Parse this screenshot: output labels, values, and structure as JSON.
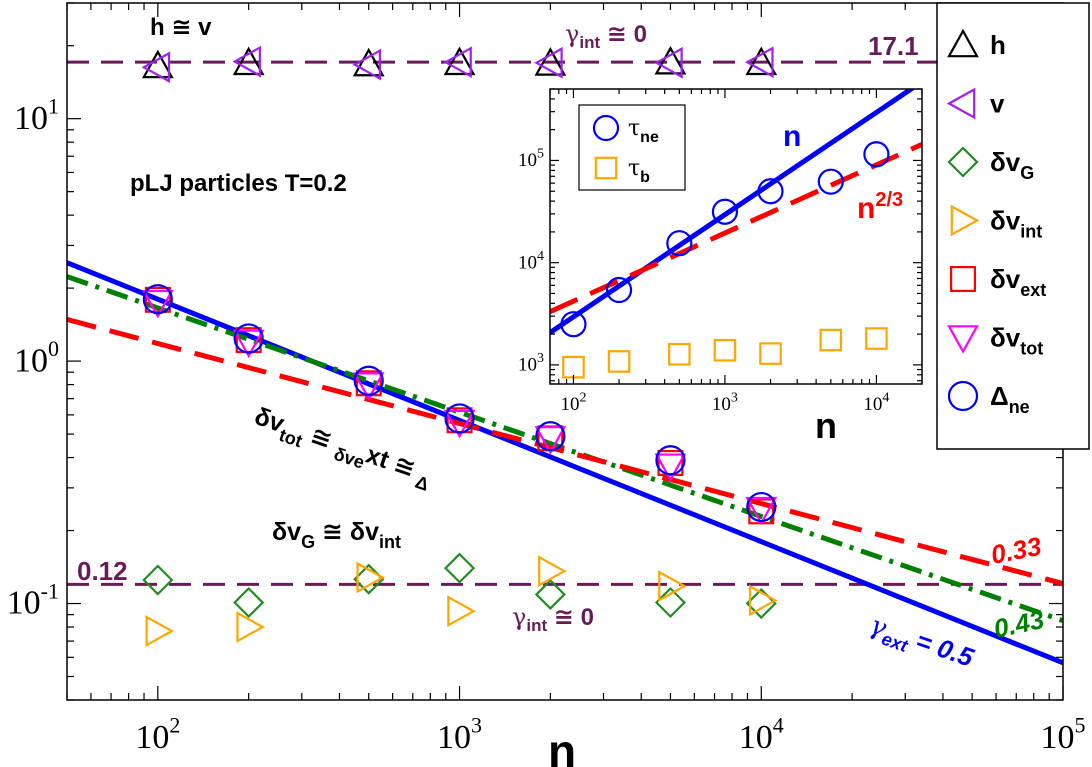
{
  "chart_data": [
    {
      "type": "scatter",
      "subtitle": "pLJ particles T=0.2",
      "xlabel": "n",
      "ylabel": "",
      "xscale": "log",
      "yscale": "log",
      "xlim": [
        50,
        100000
      ],
      "ylim": [
        0.04,
        30
      ],
      "x_ticks": [
        {
          "value": 100,
          "base": "10",
          "exp": "2"
        },
        {
          "value": 1000,
          "base": "10",
          "exp": "3"
        },
        {
          "value": 10000,
          "base": "10",
          "exp": "4"
        },
        {
          "value": 100000,
          "base": "10",
          "exp": "5"
        }
      ],
      "y_ticks": [
        {
          "value": 0.1,
          "base": "10",
          "exp": "-1"
        },
        {
          "value": 1,
          "base": "10",
          "exp": "0"
        },
        {
          "value": 10,
          "base": "10",
          "exp": "1"
        }
      ],
      "series": [
        {
          "name": "h",
          "marker": "triangle-up",
          "color": "#000000",
          "x": [
            100,
            200,
            500,
            1000,
            2000,
            5000,
            10000
          ],
          "y": [
            16.5,
            17.0,
            16.8,
            17.0,
            16.9,
            17.1,
            17.0
          ]
        },
        {
          "name": "v",
          "marker": "triangle-left",
          "color": "#a020f0",
          "x": [
            100,
            200,
            500,
            1000,
            2000,
            5000,
            10000
          ],
          "y": [
            16.3,
            17.2,
            16.7,
            17.1,
            17.0,
            17.0,
            17.1
          ]
        },
        {
          "name": "δv_G",
          "marker": "diamond",
          "color": "#228b22",
          "x": [
            100,
            200,
            500,
            1000,
            2000,
            5000,
            10000
          ],
          "y": [
            0.125,
            0.101,
            0.126,
            0.14,
            0.109,
            0.101,
            0.1
          ]
        },
        {
          "name": "δv_int",
          "marker": "triangle-right",
          "color": "#ffa500",
          "x": [
            100,
            200,
            500,
            1000,
            2000,
            5000,
            10000
          ],
          "y": [
            0.077,
            0.08,
            0.128,
            0.093,
            0.136,
            0.118,
            0.103
          ]
        },
        {
          "name": "δv_ext",
          "marker": "square",
          "color": "#ff0000",
          "x": [
            100,
            200,
            500,
            1000,
            2000,
            5000,
            10000
          ],
          "y": [
            1.79,
            1.22,
            0.81,
            0.57,
            0.48,
            0.38,
            0.24
          ]
        },
        {
          "name": "δv_tot",
          "marker": "triangle-down",
          "color": "#ff00ff",
          "x": [
            100,
            200,
            500,
            1000,
            2000,
            5000,
            10000
          ],
          "y": [
            1.75,
            1.2,
            0.8,
            0.56,
            0.48,
            0.37,
            0.245
          ]
        },
        {
          "name": "Δ_ne",
          "marker": "circle",
          "color": "#0000ff",
          "x": [
            100,
            200,
            500,
            1000,
            2000,
            5000,
            10000
          ],
          "y": [
            1.8,
            1.24,
            0.83,
            0.58,
            0.49,
            0.39,
            0.25
          ]
        }
      ],
      "fit_lines": [
        {
          "name": "h ≅ v plateau",
          "style": "dashed",
          "color": "#6a1b57",
          "constant": 17.1,
          "label": "17.1"
        },
        {
          "name": "δv_G ≅ δv_int plateau",
          "style": "dashed",
          "color": "#6a1b57",
          "constant": 0.12,
          "label": "0.12"
        },
        {
          "name": "slope 0.5",
          "style": "solid",
          "color": "#0000ff",
          "amplitude": 18.0,
          "exponent": -0.5,
          "x_range": [
            50,
            100000
          ],
          "label": "γ_ext = 0.5"
        },
        {
          "name": "slope 0.43",
          "style": "dashdot",
          "color": "#008000",
          "amplitude": 12.0,
          "exponent": -0.43,
          "x_range": [
            50,
            100000
          ],
          "label": "0.43"
        },
        {
          "name": "slope 0.33",
          "style": "dashed",
          "color": "#ff0000",
          "amplitude": 5.4,
          "exponent": -0.33,
          "x_range": [
            50,
            100000
          ],
          "label": "0.33"
        }
      ],
      "annotations": {
        "h_eq_v": "h ≅ v",
        "gamma_int_top": "γint ≅ 0",
        "dvtot_eq": "δvtot ≅ δvext ≅ Δne",
        "dvg_eq": "δvG ≅ δvint",
        "gamma_int_bottom": "γint ≅ 0",
        "gamma_ext": "γext = 0.5",
        "label_17_1": "17.1",
        "label_0_12": "0.12",
        "label_0_33": "0.33",
        "label_0_43": "0.43"
      },
      "legend": {
        "placement": "right",
        "entries": [
          {
            "base": "h",
            "sub": "",
            "marker": "triangle-up",
            "color": "#000000"
          },
          {
            "base": "v",
            "sub": "",
            "marker": "triangle-left",
            "color": "#a020f0"
          },
          {
            "base": "δv",
            "sub": "G",
            "marker": "diamond",
            "color": "#228b22"
          },
          {
            "base": "δv",
            "sub": "int",
            "marker": "triangle-right",
            "color": "#ffa500"
          },
          {
            "base": "δv",
            "sub": "ext",
            "marker": "square",
            "color": "#ff0000"
          },
          {
            "base": "δv",
            "sub": "tot",
            "marker": "triangle-down",
            "color": "#ff00ff"
          },
          {
            "base": "Δ",
            "sub": "ne",
            "marker": "circle",
            "color": "#0000ff"
          }
        ]
      }
    },
    {
      "type": "scatter",
      "xlabel": "n",
      "ylabel": "",
      "xscale": "log",
      "yscale": "log",
      "xlim": [
        70,
        20000
      ],
      "ylim": [
        650,
        500000
      ],
      "x_ticks": [
        {
          "value": 100,
          "base": "10",
          "exp": "2"
        },
        {
          "value": 1000,
          "base": "10",
          "exp": "3"
        },
        {
          "value": 10000,
          "base": "10",
          "exp": "4"
        }
      ],
      "y_ticks": [
        {
          "value": 1000,
          "base": "10",
          "exp": "3"
        },
        {
          "value": 10000,
          "base": "10",
          "exp": "4"
        },
        {
          "value": 100000,
          "base": "10",
          "exp": "5"
        }
      ],
      "series": [
        {
          "name": "τ_ne",
          "marker": "circle",
          "color": "#0000ff",
          "x": [
            100,
            200,
            500,
            1000,
            2000,
            5000,
            10000
          ],
          "y": [
            2500,
            5400,
            15500,
            31500,
            50000,
            62000,
            115000
          ]
        },
        {
          "name": "τ_b",
          "marker": "square",
          "color": "#ffa500",
          "x": [
            100,
            200,
            500,
            1000,
            2000,
            5000,
            10000
          ],
          "y": [
            950,
            1080,
            1270,
            1390,
            1290,
            1750,
            1810
          ]
        }
      ],
      "fit_lines": [
        {
          "name": "n",
          "style": "solid",
          "color": "#0000ff",
          "amplitude": 29.5,
          "exponent": 1.0,
          "x_range": [
            70,
            20000
          ],
          "label": "n"
        },
        {
          "name": "n^2/3",
          "style": "dashed",
          "color": "#ff0000",
          "amplitude": 195.0,
          "exponent": 0.6667,
          "x_range": [
            70,
            20000
          ],
          "label": "n2/3"
        }
      ],
      "annotations": {
        "n_label": "n",
        "n23_base": "n",
        "n23_exp": "2/3"
      },
      "legend": {
        "placement": "top-left",
        "entries": [
          {
            "base": "τ",
            "sub": "ne",
            "marker": "circle",
            "color": "#0000ff"
          },
          {
            "base": "τ",
            "sub": "b",
            "marker": "square",
            "color": "#ffa500"
          }
        ]
      }
    }
  ]
}
